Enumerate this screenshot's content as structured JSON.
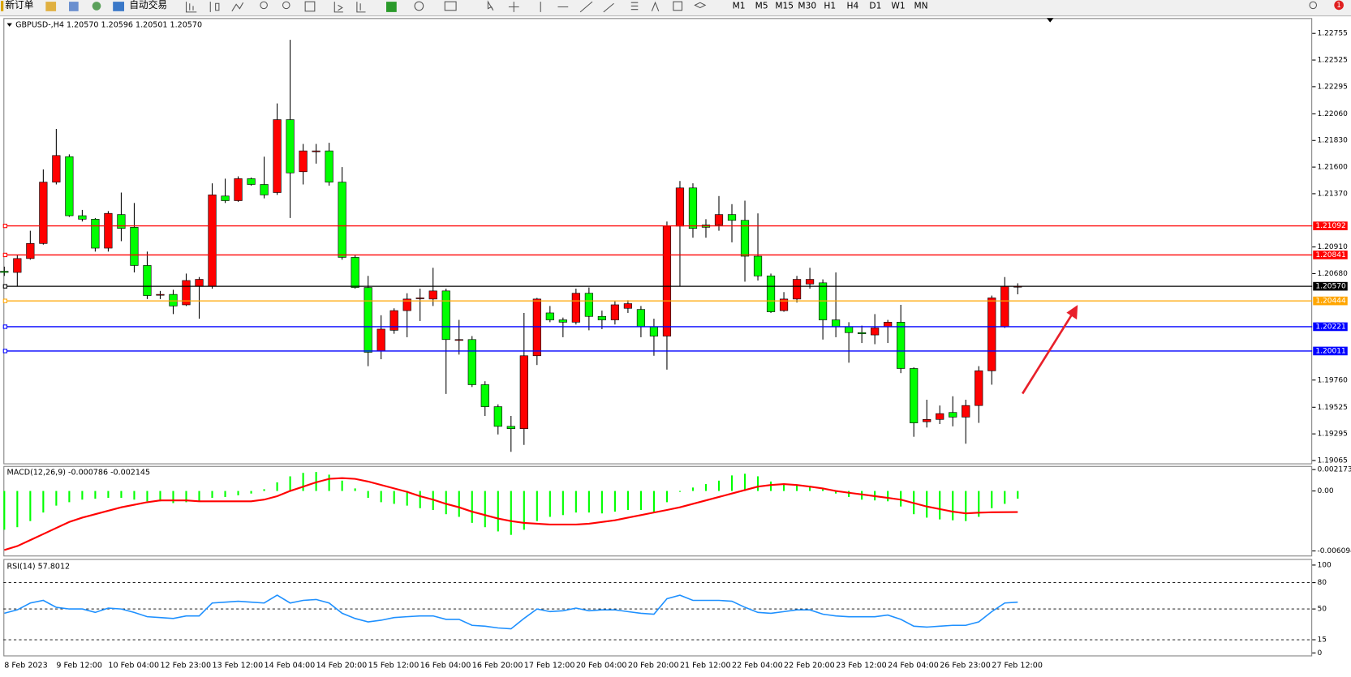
{
  "toolbar": {
    "buttons": [
      "新订单",
      "自动交易"
    ],
    "timeframes": [
      "M1",
      "M5",
      "M15",
      "M30",
      "H1",
      "H4",
      "D1",
      "W1",
      "MN"
    ],
    "badge": "1"
  },
  "chart_data": [
    {
      "type": "candlestick",
      "title": "GBPUSD-,H4  1.20570 1.20596 1.20501 1.20570",
      "categories": [
        "8 Feb 2023",
        null,
        null,
        null,
        "9 Feb 12:00",
        null,
        null,
        null,
        "10 Feb 04:00",
        null,
        null,
        null,
        "12 Feb 23:00",
        null,
        null,
        null,
        "13 Feb 12:00",
        null,
        null,
        null,
        "14 Feb 04:00",
        null,
        null,
        null,
        "14 Feb 20:00",
        null,
        null,
        null,
        "15 Feb 12:00",
        null,
        null,
        null,
        "16 Feb 04:00",
        null,
        null,
        null,
        "16 Feb 20:00",
        null,
        null,
        null,
        "17 Feb 12:00",
        null,
        null,
        null,
        "20 Feb 04:00",
        null,
        null,
        null,
        "20 Feb 20:00",
        null,
        null,
        null,
        "21 Feb 12:00",
        null,
        null,
        null,
        "22 Feb 04:00",
        null,
        null,
        null,
        "22 Feb 20:00",
        null,
        null,
        null,
        "23 Feb 12:00",
        null,
        null,
        null,
        "24 Feb 04:00",
        null,
        null,
        null,
        "26 Feb 23:00",
        null,
        null,
        null,
        "27 Feb 12:00",
        null,
        null
      ],
      "open": [
        1.207,
        1.2069,
        1.2081,
        1.2094,
        1.2147,
        1.2169,
        1.2118,
        1.2115,
        1.209,
        1.2119,
        1.2108,
        1.2075,
        1.205,
        1.205,
        1.2041,
        1.2057,
        1.2057,
        1.2135,
        1.2131,
        1.215,
        1.2145,
        1.2138,
        1.2201,
        1.2156,
        1.2174,
        1.2174,
        1.2147,
        1.2082,
        1.2056,
        1.2001,
        1.2019,
        1.2036,
        1.2047,
        1.2046,
        1.2053,
        1.2011,
        1.2011,
        1.1972,
        1.1953,
        1.1936,
        1.1934,
        1.1997,
        1.2034,
        1.2028,
        1.2026,
        1.2051,
        1.2031,
        1.2028,
        1.2038,
        1.2037,
        1.2022,
        1.2014,
        1.2109,
        1.2142,
        1.211,
        1.211,
        1.2119,
        1.2114,
        1.2083,
        1.2066,
        1.2036,
        1.2046,
        1.2059,
        1.206,
        1.2028,
        1.2022,
        1.2017,
        1.2015,
        1.2022,
        1.2026,
        1.1986,
        1.194,
        1.1942,
        1.1948,
        1.1944,
        1.1954,
        1.1984,
        1.2022,
        1.2057
      ],
      "high": [
        1.2074,
        1.2084,
        1.2105,
        1.2158,
        1.2193,
        1.2171,
        1.2123,
        1.2116,
        1.2122,
        1.2138,
        1.2129,
        1.2087,
        1.2053,
        1.2054,
        1.2068,
        1.2065,
        1.2146,
        1.215,
        1.2152,
        1.2151,
        1.2169,
        1.2215,
        1.227,
        1.218,
        1.218,
        1.2181,
        1.216,
        1.2084,
        1.2066,
        1.2032,
        1.2038,
        1.2051,
        1.2055,
        1.2073,
        1.2055,
        1.2028,
        1.2014,
        1.1975,
        1.1955,
        1.1945,
        1.2034,
        1.2047,
        1.204,
        1.203,
        1.2055,
        1.2056,
        1.2036,
        1.2044,
        1.2045,
        1.204,
        1.2029,
        1.2113,
        1.2148,
        1.2146,
        1.2115,
        1.2135,
        1.2128,
        1.2131,
        1.212,
        1.2068,
        1.2052,
        1.2066,
        1.2073,
        1.2063,
        1.2069,
        1.2026,
        1.2023,
        1.2033,
        1.2028,
        1.2041,
        1.1987,
        1.1959,
        1.1954,
        1.1962,
        1.1959,
        1.1988,
        1.2049,
        1.2065,
        1.20596
      ],
      "low": [
        1.2066,
        1.2057,
        1.208,
        1.2093,
        1.2145,
        1.2117,
        1.2113,
        1.2087,
        1.2087,
        1.2096,
        1.2069,
        1.2046,
        1.2046,
        1.2033,
        1.204,
        1.2029,
        1.2055,
        1.2129,
        1.213,
        1.2144,
        1.2133,
        1.2136,
        1.2116,
        1.2145,
        1.2163,
        1.2144,
        1.208,
        1.2055,
        1.1988,
        1.1994,
        1.2016,
        1.2013,
        1.2027,
        1.204,
        1.1964,
        1.1998,
        1.197,
        1.1945,
        1.1929,
        1.1914,
        1.192,
        1.1989,
        1.2026,
        1.2013,
        1.2024,
        1.2019,
        1.202,
        1.2024,
        1.2034,
        1.2013,
        1.1997,
        1.1985,
        1.2057,
        1.2099,
        1.2099,
        1.2105,
        1.2095,
        1.2061,
        1.2062,
        1.2034,
        1.2035,
        1.2043,
        1.2055,
        1.2011,
        1.2013,
        1.1991,
        1.2008,
        1.2007,
        1.2008,
        1.1982,
        1.1927,
        1.1935,
        1.1938,
        1.1936,
        1.1921,
        1.1939,
        1.1972,
        1.2021,
        1.20501
      ],
      "close": [
        1.2069,
        1.2081,
        1.2094,
        1.2147,
        1.217,
        1.2118,
        1.2115,
        1.209,
        1.212,
        1.2107,
        1.2075,
        1.2049,
        1.205,
        1.204,
        1.2062,
        1.2063,
        1.2136,
        1.2131,
        1.215,
        1.2145,
        1.2136,
        1.2201,
        1.2155,
        1.2174,
        1.2174,
        1.2147,
        1.2082,
        1.2056,
        1.2,
        1.202,
        1.2036,
        1.2046,
        1.2047,
        1.2053,
        1.2011,
        1.2011,
        1.1972,
        1.1953,
        1.1936,
        1.1934,
        1.1997,
        1.2046,
        1.2028,
        1.2026,
        1.2051,
        1.2031,
        1.2028,
        1.2041,
        1.2042,
        1.2022,
        1.2014,
        1.2109,
        1.2142,
        1.2107,
        1.2108,
        1.2119,
        1.2114,
        1.2083,
        1.2066,
        1.2035,
        1.2046,
        1.2063,
        1.2063,
        1.2028,
        1.2022,
        1.2017,
        1.2016,
        1.2021,
        1.2026,
        1.1986,
        1.1939,
        1.1942,
        1.1947,
        1.1944,
        1.1954,
        1.1984,
        1.2047,
        1.2057,
        1.2057
      ],
      "up_color": "#ff0000",
      "down_color": "#00ff00",
      "ylim": [
        1.1904,
        1.2288
      ],
      "yticks": [
        1.22755,
        1.22525,
        1.22295,
        {
          "value": 1.2206,
          "label": "1.22060"
        },
        {
          "value": 1.2183,
          "label": "1.21830"
        },
        {
          "value": 1.216,
          "label": "1.21600"
        },
        {
          "value": 1.2137,
          "label": "1.21370"
        },
        {
          "value": 1.2091,
          "label": "1.20910"
        },
        {
          "value": 1.2068,
          "label": "1.20680"
        },
        {
          "value": 1.1976,
          "label": "1.19760"
        },
        1.19525,
        1.19295,
        1.19065
      ],
      "levels": [
        {
          "value": 1.21092,
          "color": "#ff0000"
        },
        {
          "value": 1.20841,
          "color": "#ff0000"
        },
        {
          "value": 1.2057,
          "label": "1.20570",
          "color": "#000000"
        },
        {
          "value": 1.20444,
          "color": "#ffa500"
        },
        {
          "value": 1.20221,
          "color": "#0000ff"
        },
        {
          "value": 1.20011,
          "color": "#0000ff"
        }
      ]
    },
    {
      "type": "macd",
      "title": "MACD(12,26,9) -0.000786 -0.002145",
      "series": [
        {
          "type": "bar",
          "color": "#00ff00",
          "values": [
            -0.00394,
            -0.00368,
            -0.00306,
            -0.00219,
            -0.00149,
            -0.00114,
            -0.00088,
            -0.00079,
            -0.0007,
            -0.0007,
            -0.00088,
            -0.00105,
            -0.00105,
            -0.00123,
            -0.00114,
            -0.00105,
            -0.0007,
            -0.00061,
            -0.00044,
            -0.00026,
            0.00018,
            0.00088,
            0.00149,
            0.00184,
            0.00193,
            0.00166,
            0.00105,
            0.00026,
            -0.0007,
            -0.00114,
            -0.00131,
            -0.00149,
            -0.00175,
            -0.00193,
            -0.00236,
            -0.00263,
            -0.00324,
            -0.00368,
            -0.00411,
            -0.00446,
            -0.00394,
            -0.00306,
            -0.00263,
            -0.00245,
            -0.00219,
            -0.00219,
            -0.00228,
            -0.0021,
            -0.00193,
            -0.00193,
            -0.00219,
            -0.00114,
            -9e-05,
            0.00035,
            0.0007,
            0.00105,
            0.00158,
            0.00175,
            0.00149,
            0.00096,
            0.0007,
            0.00061,
            0.00053,
            0.00018,
            -0.00026,
            -0.00061,
            -0.00088,
            -0.00096,
            -0.00105,
            -0.00158,
            -0.00236,
            -0.00271,
            -0.00289,
            -0.00298,
            -0.00306,
            -0.00263,
            -0.00175,
            -0.00131,
            -0.000786
          ]
        },
        {
          "type": "line",
          "color": "#ff0000",
          "values": [
            -0.006,
            -0.0056,
            -0.00499,
            -0.00438,
            -0.00376,
            -0.00315,
            -0.00271,
            -0.00236,
            -0.00201,
            -0.00166,
            -0.0014,
            -0.00114,
            -0.00096,
            -0.00096,
            -0.00096,
            -0.00105,
            -0.00105,
            -0.00105,
            -0.00105,
            -0.00105,
            -0.00088,
            -0.00053,
            0,
            0.00044,
            0.00088,
            0.00123,
            0.00131,
            0.00123,
            0.00096,
            0.00061,
            0.00026,
            -9e-05,
            -0.00053,
            -0.00088,
            -0.00131,
            -0.00166,
            -0.0021,
            -0.00245,
            -0.0028,
            -0.00306,
            -0.00324,
            -0.00333,
            -0.00341,
            -0.00341,
            -0.00341,
            -0.00333,
            -0.00315,
            -0.00298,
            -0.00271,
            -0.00245,
            -0.00219,
            -0.00193,
            -0.00166,
            -0.00131,
            -0.00096,
            -0.00061,
            -0.00026,
            9e-05,
            0.00044,
            0.00061,
            0.0007,
            0.00061,
            0.00044,
            0.00026,
            0,
            -0.00018,
            -0.00035,
            -0.00053,
            -0.0007,
            -0.00088,
            -0.00123,
            -0.00158,
            -0.00184,
            -0.0021,
            -0.00228,
            -0.0022,
            -0.00216,
            -0.00215,
            -0.002145
          ]
        }
      ],
      "ylim": [
        -0.00665,
        0.00254
      ],
      "yticks": [
        0.002173,
        {
          "value": 0,
          "label": "0.00"
        },
        -0.006094
      ]
    },
    {
      "type": "line",
      "title": "RSI(14) 57.8012",
      "series": [
        {
          "color": "#1e90ff",
          "values": [
            45.1,
            49.0,
            56.8,
            59.8,
            51.9,
            50.0,
            50.0,
            46.1,
            51.0,
            50.0,
            46.1,
            41.2,
            40.2,
            39.2,
            42.1,
            42.1,
            56.8,
            57.8,
            58.8,
            57.8,
            56.8,
            65.7,
            56.8,
            59.8,
            60.8,
            56.8,
            45.1,
            39.2,
            35.3,
            37.2,
            40.2,
            41.2,
            42.1,
            42.1,
            38.2,
            38.2,
            31.4,
            30.4,
            28.4,
            27.4,
            39.2,
            50.0,
            47.0,
            48.0,
            51.0,
            48.0,
            49.0,
            49.0,
            47.0,
            45.1,
            44.1,
            61.7,
            65.7,
            59.8,
            59.8,
            59.8,
            58.8,
            51.9,
            46.1,
            45.1,
            47.0,
            49.0,
            49.0,
            44.1,
            42.1,
            41.2,
            41.2,
            41.2,
            43.1,
            38.2,
            30.4,
            29.4,
            30.4,
            31.4,
            31.4,
            35.3,
            47.0,
            56.8,
            57.8012
          ]
        }
      ],
      "ylim": [
        -3.9,
        106.9
      ],
      "yticks": [
        100,
        80,
        50,
        15,
        0
      ]
    }
  ]
}
